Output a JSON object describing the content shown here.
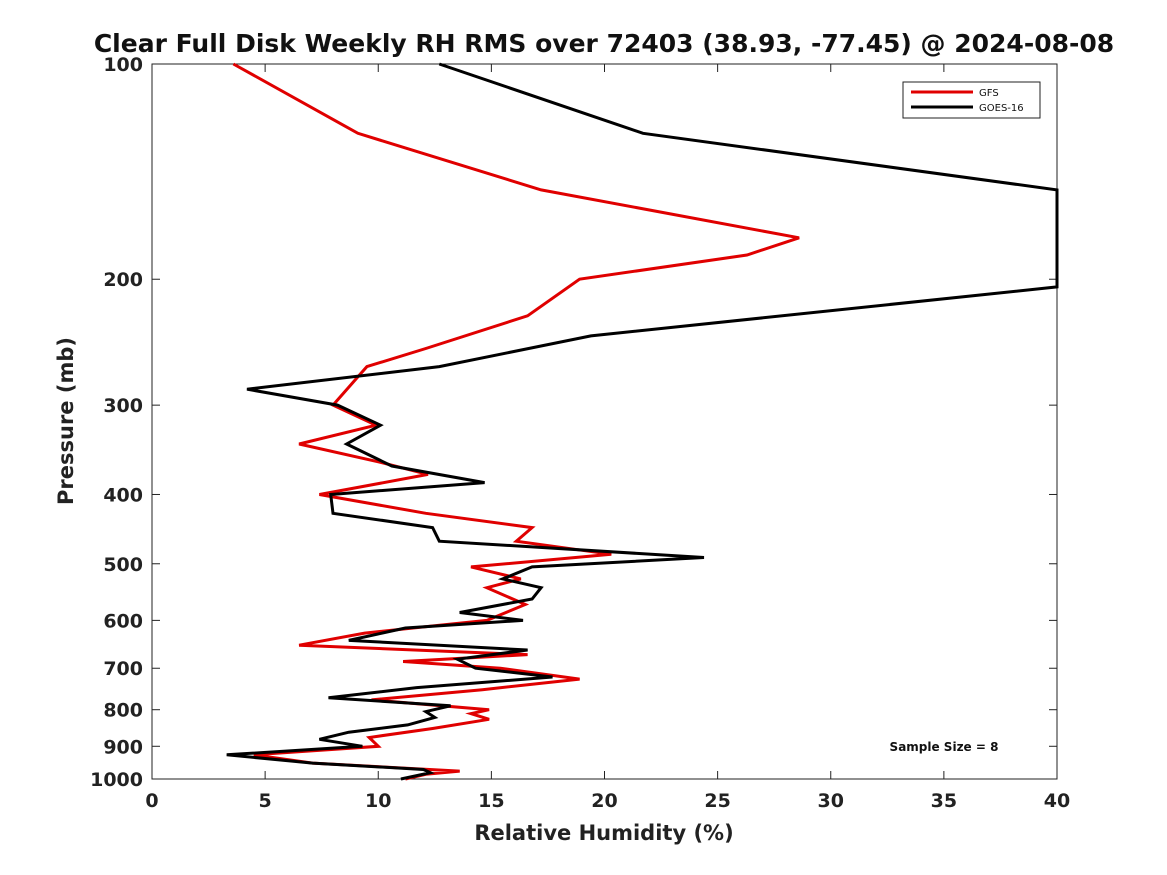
{
  "chart_data": {
    "type": "line",
    "title": "Clear Full Disk Weekly RH RMS over 72403 (38.93, -77.45) @ 2024-08-08",
    "xlabel": "Relative Humidity (%)",
    "ylabel": "Pressure (mb)",
    "xlim": [
      0,
      40
    ],
    "ylim": [
      100,
      1000
    ],
    "y_scale": "log",
    "y_reversed": true,
    "x_ticks": [
      0,
      5,
      10,
      15,
      20,
      25,
      30,
      35,
      40
    ],
    "y_ticks": [
      100,
      200,
      300,
      400,
      500,
      600,
      700,
      800,
      900,
      1000
    ],
    "legend_position": "top-right",
    "annotation": "Sample Size = 8",
    "series": [
      {
        "name": "GFS",
        "color": "#e00000",
        "points": [
          [
            3.6,
            100
          ],
          [
            9.1,
            125
          ],
          [
            17.2,
            150
          ],
          [
            28.6,
            175
          ],
          [
            26.3,
            185
          ],
          [
            18.9,
            200
          ],
          [
            16.6,
            225
          ],
          [
            12.1,
            250
          ],
          [
            9.5,
            265
          ],
          [
            8.0,
            300
          ],
          [
            9.9,
            320
          ],
          [
            6.5,
            340
          ],
          [
            10.0,
            360
          ],
          [
            12.2,
            375
          ],
          [
            7.4,
            400
          ],
          [
            12.1,
            425
          ],
          [
            16.8,
            445
          ],
          [
            16.1,
            465
          ],
          [
            20.3,
            485
          ],
          [
            14.1,
            505
          ],
          [
            16.3,
            525
          ],
          [
            14.8,
            540
          ],
          [
            16.5,
            570
          ],
          [
            14.8,
            600
          ],
          [
            12.6,
            610
          ],
          [
            9.4,
            625
          ],
          [
            6.5,
            650
          ],
          [
            16.6,
            670
          ],
          [
            11.1,
            685
          ],
          [
            15.4,
            700
          ],
          [
            18.9,
            725
          ],
          [
            14.6,
            750
          ],
          [
            9.7,
            775
          ],
          [
            14.9,
            800
          ],
          [
            14.1,
            810
          ],
          [
            14.9,
            825
          ],
          [
            12.4,
            850
          ],
          [
            9.6,
            875
          ],
          [
            10.0,
            900
          ],
          [
            4.5,
            925
          ],
          [
            7.1,
            950
          ],
          [
            13.6,
            975
          ],
          [
            12.1,
            985
          ],
          [
            11.2,
            1000
          ]
        ]
      },
      {
        "name": "GOES-16",
        "color": "#000000",
        "points": [
          [
            12.7,
            100
          ],
          [
            21.7,
            125
          ],
          [
            40.0,
            150
          ],
          [
            40.0,
            205
          ],
          [
            19.4,
            240
          ],
          [
            12.7,
            265
          ],
          [
            4.2,
            285
          ],
          [
            8.2,
            300
          ],
          [
            10.1,
            320
          ],
          [
            8.6,
            340
          ],
          [
            10.6,
            365
          ],
          [
            14.7,
            385
          ],
          [
            7.9,
            400
          ],
          [
            8.0,
            425
          ],
          [
            12.4,
            445
          ],
          [
            12.7,
            465
          ],
          [
            24.4,
            490
          ],
          [
            16.8,
            505
          ],
          [
            15.5,
            525
          ],
          [
            17.2,
            540
          ],
          [
            16.8,
            560
          ],
          [
            13.6,
            585
          ],
          [
            16.4,
            600
          ],
          [
            11.2,
            615
          ],
          [
            8.7,
            640
          ],
          [
            16.6,
            660
          ],
          [
            13.5,
            680
          ],
          [
            14.3,
            700
          ],
          [
            17.7,
            720
          ],
          [
            11.7,
            745
          ],
          [
            7.8,
            770
          ],
          [
            13.2,
            790
          ],
          [
            12.1,
            805
          ],
          [
            12.5,
            820
          ],
          [
            11.3,
            840
          ],
          [
            8.7,
            860
          ],
          [
            7.4,
            880
          ],
          [
            9.3,
            900
          ],
          [
            3.3,
            925
          ],
          [
            7.1,
            950
          ],
          [
            12.0,
            970
          ],
          [
            12.3,
            980
          ],
          [
            11.0,
            1000
          ]
        ]
      }
    ]
  }
}
